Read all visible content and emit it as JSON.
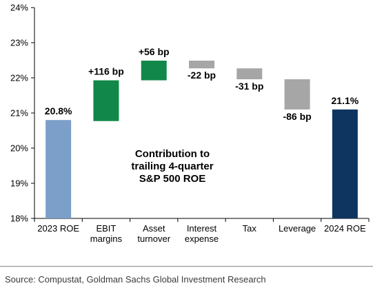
{
  "chart_data": {
    "type": "bar",
    "subtype": "waterfall",
    "categories": [
      [
        "2023 ROE"
      ],
      [
        "EBIT",
        "margins"
      ],
      [
        "Asset",
        "turnover"
      ],
      [
        "Interest",
        "expense"
      ],
      [
        "Tax"
      ],
      [
        "Leverage"
      ],
      [
        "2024 ROE"
      ]
    ],
    "bars": [
      {
        "kind": "total",
        "start": 18,
        "end": 20.8,
        "label": "20.8%",
        "color": "#7b9fc9"
      },
      {
        "kind": "increase",
        "start": 20.77,
        "end": 21.93,
        "label": "+116 bp",
        "color": "#11884a"
      },
      {
        "kind": "increase",
        "start": 21.93,
        "end": 22.49,
        "label": "+56 bp",
        "color": "#11884a"
      },
      {
        "kind": "decrease",
        "start": 22.49,
        "end": 22.27,
        "label": "-22 bp",
        "color": "#a6a6a6"
      },
      {
        "kind": "decrease",
        "start": 22.27,
        "end": 21.96,
        "label": "-31 bp",
        "color": "#a6a6a6"
      },
      {
        "kind": "decrease",
        "start": 21.96,
        "end": 21.1,
        "label": "-86 bp",
        "color": "#a6a6a6"
      },
      {
        "kind": "total",
        "start": 18,
        "end": 21.1,
        "label": "21.1%",
        "color": "#0e3560"
      }
    ],
    "ylim": [
      18,
      24
    ],
    "yticks": [
      "18%",
      "19%",
      "20%",
      "21%",
      "22%",
      "23%",
      "24%"
    ],
    "annotation": [
      "Contribution to",
      "trailing 4-quarter",
      "S&P 500 ROE"
    ],
    "grid": false
  },
  "source": "Source: Compustat, Goldman Sachs Global Investment Research"
}
